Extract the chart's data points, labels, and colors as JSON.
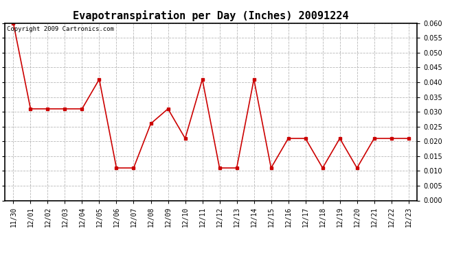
{
  "title": "Evapotranspiration per Day (Inches) 20091224",
  "copyright_text": "Copyright 2009 Cartronics.com",
  "x_labels": [
    "11/30",
    "12/01",
    "12/02",
    "12/03",
    "12/04",
    "12/05",
    "12/06",
    "12/07",
    "12/08",
    "12/09",
    "12/10",
    "12/11",
    "12/12",
    "12/13",
    "12/14",
    "12/15",
    "12/16",
    "12/17",
    "12/18",
    "12/19",
    "12/20",
    "12/21",
    "12/22",
    "12/23"
  ],
  "y_values": [
    0.06,
    0.031,
    0.031,
    0.031,
    0.031,
    0.041,
    0.011,
    0.011,
    0.026,
    0.031,
    0.021,
    0.041,
    0.011,
    0.011,
    0.041,
    0.011,
    0.021,
    0.021,
    0.011,
    0.021,
    0.011,
    0.021,
    0.021,
    0.021
  ],
  "line_color": "#cc0000",
  "marker": "s",
  "marker_size": 3,
  "ylim": [
    0.0,
    0.06
  ],
  "yticks": [
    0.0,
    0.005,
    0.01,
    0.015,
    0.02,
    0.025,
    0.03,
    0.035,
    0.04,
    0.045,
    0.05,
    0.055,
    0.06
  ],
  "bg_color": "#ffffff",
  "grid_color": "#b0b0b0",
  "title_fontsize": 11,
  "copyright_fontsize": 6.5,
  "tick_fontsize": 7
}
